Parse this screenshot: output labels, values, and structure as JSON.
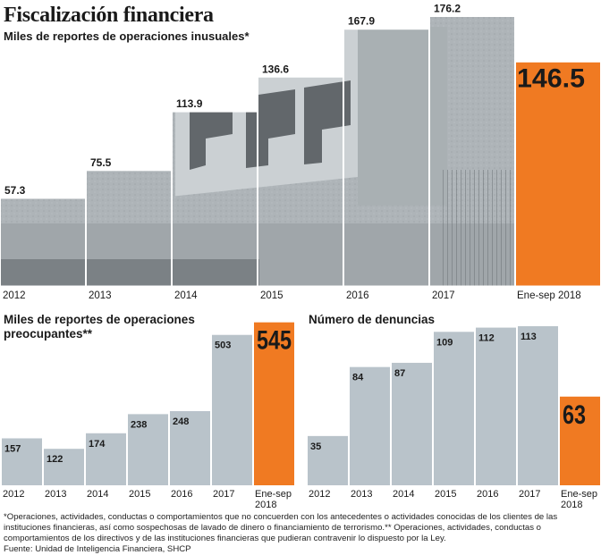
{
  "header": {
    "title": "Fiscalización financiera",
    "subtitle": "Miles de reportes de operaciones inusuales*"
  },
  "chart_data": [
    {
      "type": "bar",
      "title": "Miles de reportes de operaciones inusuales*",
      "categories": [
        "2012",
        "2013",
        "2014",
        "2015",
        "2016",
        "2017",
        "Ene-sep 2018"
      ],
      "values": [
        57.3,
        75.5,
        113.9,
        136.6,
        167.9,
        176.2,
        146.5
      ],
      "value_labels": [
        "57.3",
        "75.5",
        "113.9",
        "136.6",
        "167.9",
        "176.2",
        "146.5"
      ],
      "highlight_index": 6,
      "ylim": [
        0,
        180
      ]
    },
    {
      "type": "bar",
      "title": "Miles de reportes de operaciones preocupantes**",
      "title_lines": [
        "Miles de reportes de operaciones",
        "preocupantes**"
      ],
      "categories": [
        "2012",
        "2013",
        "2014",
        "2015",
        "2016",
        "2017",
        "Ene-sep 2018"
      ],
      "category_lines": [
        [
          "2012"
        ],
        [
          "2013"
        ],
        [
          "2014"
        ],
        [
          "2015"
        ],
        [
          "2016"
        ],
        [
          "2017"
        ],
        [
          "Ene-sep",
          "2018"
        ]
      ],
      "values": [
        157,
        122,
        174,
        238,
        248,
        503,
        545
      ],
      "value_labels": [
        "157",
        "122",
        "174",
        "238",
        "248",
        "503",
        "545"
      ],
      "highlight_index": 6,
      "ylim": [
        0,
        550
      ]
    },
    {
      "type": "bar",
      "title": "Número de denuncias",
      "categories": [
        "2012",
        "2013",
        "2014",
        "2015",
        "2016",
        "2017",
        "Ene-sep 2018"
      ],
      "category_lines": [
        [
          "2012"
        ],
        [
          "2013"
        ],
        [
          "2014"
        ],
        [
          "2015"
        ],
        [
          "2016"
        ],
        [
          "2017"
        ],
        [
          "Ene-sep",
          "2018"
        ]
      ],
      "values": [
        35,
        84,
        87,
        109,
        112,
        113,
        63
      ],
      "value_labels": [
        "35",
        "84",
        "87",
        "109",
        "112",
        "113",
        "63"
      ],
      "highlight_index": 6,
      "ylim": [
        0,
        113
      ]
    }
  ],
  "footer": {
    "note": "*Operaciones, actividades, conductas o comportamientos que no concuerden con los antecedentes o actividades conocidas de los clientes de las instituciones financieras, así como sospechosas de lavado de dinero o financiamiento de terrorismo.** Operaciones, actividades, conductas o comportamientos de los directivos y de las instituciones financieras que pudieran contravenir lo dispuesto por la Ley.",
    "source": "Fuente: Unidad de Inteligencia Financiera, SHCP"
  },
  "colors": {
    "bar": "#b9c3ca",
    "highlight": "#f07a22",
    "photo_dark": "#3a3d40",
    "text": "#1a1a1a"
  },
  "icons": [
    "photo-background-building"
  ]
}
